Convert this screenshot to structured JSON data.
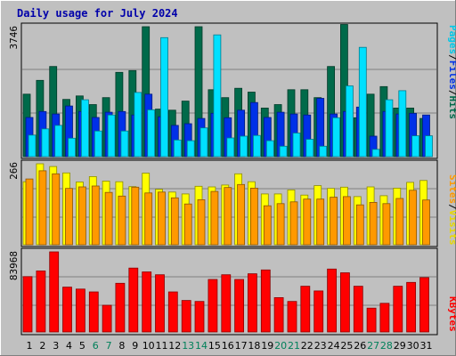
{
  "chart_data": {
    "type": "bar",
    "title": "Daily usage for July 2024",
    "categories": [
      "1",
      "2",
      "3",
      "4",
      "5",
      "6",
      "7",
      "8",
      "9",
      "10",
      "11",
      "12",
      "13",
      "14",
      "15",
      "16",
      "17",
      "18",
      "19",
      "20",
      "21",
      "22",
      "23",
      "24",
      "25",
      "26",
      "27",
      "28",
      "29",
      "30",
      "31"
    ],
    "weekend_days": [
      "6",
      "7",
      "13",
      "14",
      "20",
      "21",
      "27",
      "28"
    ],
    "panels": [
      {
        "id": "hits-files-pages",
        "max": 3746,
        "max_label": "3746",
        "series": [
          {
            "name": "Hits",
            "color": "#006A4A",
            "values": [
              1800,
              2200,
              2600,
              1650,
              1750,
              1500,
              1700,
              2430,
              2480,
              3746,
              1370,
              1340,
              1600,
              3746,
              1930,
              1700,
              1970,
              1860,
              1400,
              1500,
              1930,
              1930,
              1700,
              2600,
              3810,
              1120,
              1800,
              2020,
              1400,
              1400,
              1100
            ]
          },
          {
            "name": "Files",
            "color": "#0030E8",
            "values": [
              1130,
              1300,
              1230,
              1460,
              1300,
              1130,
              1280,
              1300,
              1200,
              1800,
              1150,
              900,
              950,
              1100,
              1250,
              1120,
              1340,
              1560,
              1130,
              1280,
              1230,
              1200,
              1680,
              1230,
              1300,
              1430,
              590,
              1300,
              1230,
              1250,
              1200
            ]
          },
          {
            "name": "Pages",
            "color": "#00E0FF",
            "values": [
              620,
              800,
              900,
              530,
              1640,
              740,
              1200,
              740,
              1850,
              1350,
              3430,
              480,
              460,
              830,
              3510,
              540,
              590,
              610,
              460,
              300,
              680,
              500,
              300,
              1120,
              2040,
              3150,
              210,
              1640,
              1900,
              600,
              600
            ]
          }
        ]
      },
      {
        "id": "visits-sites",
        "max": 266,
        "max_label": "266",
        "series": [
          {
            "name": "Visits",
            "color": "#FFFF00",
            "values": [
              207,
              266,
              257,
              236,
              206,
              224,
              209,
              207,
              191,
              235,
              182,
              173,
              167,
              192,
              190,
              196,
              233,
              207,
              167,
              167,
              180,
              163,
              194,
              185,
              189,
              158,
              190,
              161,
              186,
              205,
              211
            ]
          },
          {
            "name": "Sites",
            "color": "#FF9900",
            "values": [
              216,
              243,
              233,
              185,
              190,
              193,
              172,
              160,
              189,
              170,
              173,
              154,
              134,
              148,
              175,
              188,
              198,
              186,
              128,
              135,
              141,
              150,
              150,
              156,
              158,
              131,
              139,
              135,
              152,
              179,
              147
            ]
          }
        ]
      },
      {
        "id": "kbytes",
        "max": 83968,
        "max_label": "83968",
        "series": [
          {
            "name": "KBytes",
            "color": "#FF0000",
            "values": [
              58000,
              64000,
              84000,
              47000,
              45000,
              42000,
              28000,
              51000,
              67000,
              63000,
              60000,
              42000,
              33000,
              32000,
              55000,
              60000,
              55000,
              61000,
              65000,
              36000,
              32000,
              48000,
              43000,
              66000,
              62000,
              48000,
              25000,
              30000,
              48000,
              52000,
              57000
            ]
          }
        ]
      }
    ]
  }
}
